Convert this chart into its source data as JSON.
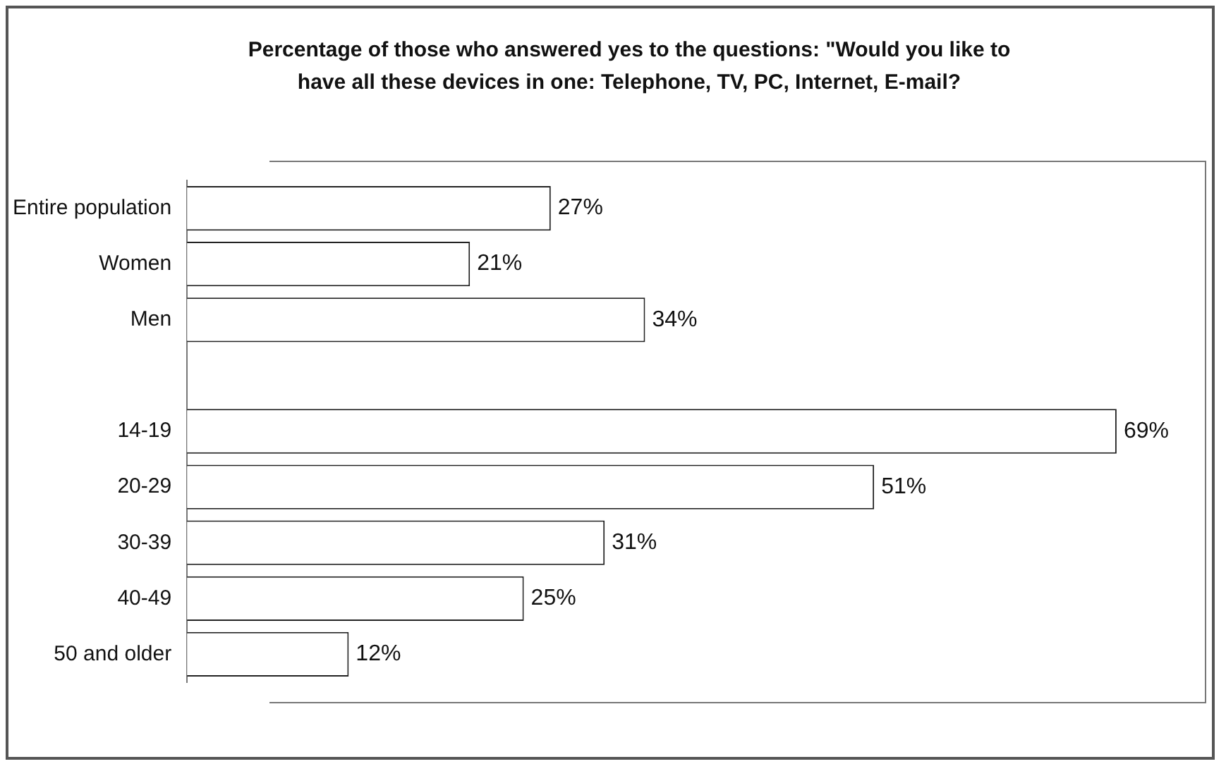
{
  "chart_data": {
    "type": "bar",
    "orientation": "horizontal",
    "title": "Percentage of those who answered yes to the questions: \"Would you like to have all these devices in one: Telephone, TV, PC, Internet, E-mail?",
    "categories": [
      "Entire population",
      "Women",
      "Men",
      null,
      "14-19",
      "20-29",
      "30-39",
      "40-49",
      "50 and older"
    ],
    "values": [
      27,
      21,
      34,
      null,
      69,
      51,
      31,
      25,
      12
    ],
    "value_labels": [
      "27%",
      "21%",
      "34%",
      null,
      "69%",
      "51%",
      "31%",
      "25%",
      "12%"
    ],
    "color": "#ffffff",
    "grid": false,
    "legend": false,
    "tick_labels": "y"
  }
}
